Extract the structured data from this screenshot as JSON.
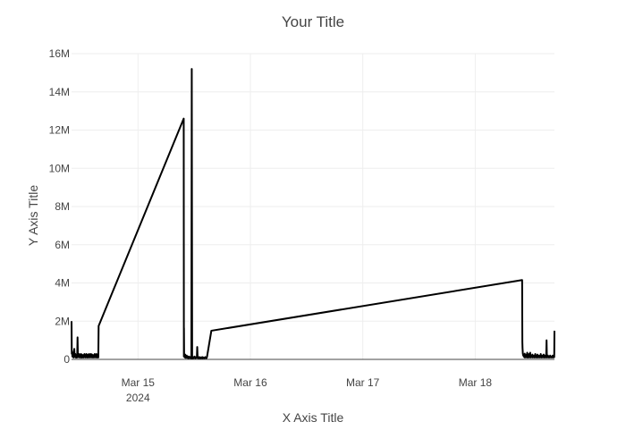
{
  "chart_data": {
    "type": "line",
    "title": "Your Title",
    "xlabel": "X Axis Title",
    "ylabel": "Y Axis Title",
    "x_axis_type": "date",
    "xlim": [
      "2024-03-14 09:49",
      "2024-03-18 16:55"
    ],
    "ylim": [
      0,
      16000000
    ],
    "x_ticks": [
      {
        "value": "2024-03-15 00:00",
        "label": "Mar 15",
        "sublabel": "2024"
      },
      {
        "value": "2024-03-16 00:00",
        "label": "Mar 16",
        "sublabel": ""
      },
      {
        "value": "2024-03-17 00:00",
        "label": "Mar 17",
        "sublabel": ""
      },
      {
        "value": "2024-03-18 00:00",
        "label": "Mar 18",
        "sublabel": ""
      }
    ],
    "y_ticks": [
      {
        "value": 0,
        "label": "0"
      },
      {
        "value": 2000000,
        "label": "2M"
      },
      {
        "value": 4000000,
        "label": "4M"
      },
      {
        "value": 6000000,
        "label": "6M"
      },
      {
        "value": 8000000,
        "label": "8M"
      },
      {
        "value": 10000000,
        "label": "10M"
      },
      {
        "value": 12000000,
        "label": "12M"
      },
      {
        "value": 14000000,
        "label": "14M"
      },
      {
        "value": 16000000,
        "label": "16M"
      }
    ],
    "grid": true,
    "line_color": "#000000",
    "series": [
      {
        "x": [
          "2024-03-14 09:49",
          "2024-03-14 09:52",
          "2024-03-14 09:56",
          "2024-03-14 10:00",
          "2024-03-14 10:05",
          "2024-03-14 10:10",
          "2024-03-14 10:14",
          "2024-03-14 10:19",
          "2024-03-14 10:24",
          "2024-03-14 10:28",
          "2024-03-14 10:33",
          "2024-03-14 10:38",
          "2024-03-14 10:42",
          "2024-03-14 10:47",
          "2024-03-14 10:52",
          "2024-03-14 10:56",
          "2024-03-14 11:01",
          "2024-03-14 11:06",
          "2024-03-14 11:10",
          "2024-03-14 11:15",
          "2024-03-14 11:20",
          "2024-03-14 11:24",
          "2024-03-14 11:29",
          "2024-03-14 11:34",
          "2024-03-14 11:38",
          "2024-03-14 11:43",
          "2024-03-14 11:48",
          "2024-03-14 11:52",
          "2024-03-14 11:57",
          "2024-03-14 12:02",
          "2024-03-14 12:06",
          "2024-03-14 12:11",
          "2024-03-14 12:16",
          "2024-03-14 12:20",
          "2024-03-14 12:25",
          "2024-03-14 12:30",
          "2024-03-14 12:34",
          "2024-03-14 12:39",
          "2024-03-14 12:44",
          "2024-03-14 12:48",
          "2024-03-14 12:53",
          "2024-03-14 12:58",
          "2024-03-14 13:02",
          "2024-03-14 13:07",
          "2024-03-14 13:12",
          "2024-03-14 13:16",
          "2024-03-14 13:21",
          "2024-03-14 13:26",
          "2024-03-14 13:30",
          "2024-03-14 13:35",
          "2024-03-14 13:40",
          "2024-03-14 13:44",
          "2024-03-14 13:49",
          "2024-03-14 13:54",
          "2024-03-14 13:58",
          "2024-03-14 14:03",
          "2024-03-14 14:08",
          "2024-03-14 14:12",
          "2024-03-14 14:17",
          "2024-03-14 14:22",
          "2024-03-14 14:26",
          "2024-03-14 14:31",
          "2024-03-14 14:36",
          "2024-03-14 14:40",
          "2024-03-14 14:45",
          "2024-03-14 14:50",
          "2024-03-14 14:54",
          "2024-03-14 14:59",
          "2024-03-14 15:04",
          "2024-03-14 15:08",
          "2024-03-14 15:13",
          "2024-03-14 15:18",
          "2024-03-14 15:22",
          "2024-03-14 15:27",
          "2024-03-14 15:32",
          "2024-03-14 15:36",
          "2024-03-15 09:46",
          "2024-03-15 09:48",
          "2024-03-15 09:49",
          "2024-03-15 09:51",
          "2024-03-15 09:56",
          "2024-03-15 10:00",
          "2024-03-15 10:05",
          "2024-03-15 10:10",
          "2024-03-15 10:14",
          "2024-03-15 10:19",
          "2024-03-15 10:24",
          "2024-03-15 10:28",
          "2024-03-15 10:33",
          "2024-03-15 10:38",
          "2024-03-15 10:42",
          "2024-03-15 10:47",
          "2024-03-15 10:52",
          "2024-03-15 10:56",
          "2024-03-15 11:01",
          "2024-03-15 11:06",
          "2024-03-15 11:10",
          "2024-03-15 11:15",
          "2024-03-15 11:20",
          "2024-03-15 11:24",
          "2024-03-15 11:29",
          "2024-03-15 11:34",
          "2024-03-15 11:38",
          "2024-03-15 11:43",
          "2024-03-15 11:48",
          "2024-03-15 11:52",
          "2024-03-15 11:57",
          "2024-03-15 12:02",
          "2024-03-15 12:06",
          "2024-03-15 12:11",
          "2024-03-15 12:16",
          "2024-03-15 12:20",
          "2024-03-15 12:25",
          "2024-03-15 12:30",
          "2024-03-15 12:34",
          "2024-03-15 12:39",
          "2024-03-15 12:44",
          "2024-03-15 12:48",
          "2024-03-15 12:53",
          "2024-03-15 12:58",
          "2024-03-15 13:02",
          "2024-03-15 13:07",
          "2024-03-15 13:12",
          "2024-03-15 13:16",
          "2024-03-15 13:21",
          "2024-03-15 13:26",
          "2024-03-15 13:30",
          "2024-03-15 13:35",
          "2024-03-15 13:40",
          "2024-03-15 13:44",
          "2024-03-15 13:49",
          "2024-03-15 13:54",
          "2024-03-15 13:58",
          "2024-03-15 14:03",
          "2024-03-15 14:08",
          "2024-03-15 14:12",
          "2024-03-15 14:17",
          "2024-03-15 14:22",
          "2024-03-15 14:26",
          "2024-03-15 14:31",
          "2024-03-15 14:36",
          "2024-03-15 14:40",
          "2024-03-15 14:45",
          "2024-03-15 15:40",
          "2024-03-18 10:01",
          "2024-03-18 10:04",
          "2024-03-18 10:06",
          "2024-03-18 10:10",
          "2024-03-18 10:15",
          "2024-03-18 10:20",
          "2024-03-18 10:24",
          "2024-03-18 10:29",
          "2024-03-18 10:34",
          "2024-03-18 10:38",
          "2024-03-18 10:43",
          "2024-03-18 10:48",
          "2024-03-18 10:52",
          "2024-03-18 10:57",
          "2024-03-18 11:02",
          "2024-03-18 11:06",
          "2024-03-18 11:11",
          "2024-03-18 11:16",
          "2024-03-18 11:20",
          "2024-03-18 11:25",
          "2024-03-18 11:30",
          "2024-03-18 11:34",
          "2024-03-18 11:39",
          "2024-03-18 11:44",
          "2024-03-18 11:48",
          "2024-03-18 11:53",
          "2024-03-18 11:58",
          "2024-03-18 12:02",
          "2024-03-18 12:07",
          "2024-03-18 12:12",
          "2024-03-18 12:16",
          "2024-03-18 12:21",
          "2024-03-18 12:26",
          "2024-03-18 12:30",
          "2024-03-18 12:35",
          "2024-03-18 12:40",
          "2024-03-18 12:44",
          "2024-03-18 12:49",
          "2024-03-18 12:54",
          "2024-03-18 12:58",
          "2024-03-18 13:03",
          "2024-03-18 13:08",
          "2024-03-18 13:12",
          "2024-03-18 13:17",
          "2024-03-18 13:22",
          "2024-03-18 13:26",
          "2024-03-18 13:31",
          "2024-03-18 13:36",
          "2024-03-18 13:40",
          "2024-03-18 13:45",
          "2024-03-18 13:50",
          "2024-03-18 13:54",
          "2024-03-18 13:59",
          "2024-03-18 14:04",
          "2024-03-18 14:08",
          "2024-03-18 14:13",
          "2024-03-18 14:18",
          "2024-03-18 14:22",
          "2024-03-18 14:27",
          "2024-03-18 14:32",
          "2024-03-18 14:36",
          "2024-03-18 14:41",
          "2024-03-18 14:46",
          "2024-03-18 14:50",
          "2024-03-18 14:55",
          "2024-03-18 15:00",
          "2024-03-18 15:04",
          "2024-03-18 15:09",
          "2024-03-18 15:14",
          "2024-03-18 15:18",
          "2024-03-18 15:23",
          "2024-03-18 15:28",
          "2024-03-18 15:32",
          "2024-03-18 15:37",
          "2024-03-18 15:42",
          "2024-03-18 15:46",
          "2024-03-18 15:51",
          "2024-03-18 15:56",
          "2024-03-18 16:00",
          "2024-03-18 16:05",
          "2024-03-18 16:10",
          "2024-03-18 16:14",
          "2024-03-18 16:19",
          "2024-03-18 16:24",
          "2024-03-18 16:28",
          "2024-03-18 16:33",
          "2024-03-18 16:38",
          "2024-03-18 16:42",
          "2024-03-18 16:47",
          "2024-03-18 16:52",
          "2024-03-18 16:55"
        ],
        "y": [
          2000000,
          300000,
          450000,
          150000,
          280000,
          120000,
          350000,
          100000,
          550000,
          200000,
          150000,
          280000,
          120000,
          90000,
          200000,
          150000,
          100000,
          1150000,
          250000,
          150000,
          120000,
          280000,
          100000,
          200000,
          150000,
          120000,
          280000,
          90000,
          150000,
          250000,
          120000,
          100000,
          180000,
          220000,
          100000,
          150000,
          280000,
          120000,
          200000,
          100000,
          150000,
          280000,
          120000,
          100000,
          180000,
          250000,
          100000,
          150000,
          120000,
          280000,
          100000,
          200000,
          150000,
          120000,
          280000,
          100000,
          150000,
          250000,
          120000,
          100000,
          180000,
          220000,
          100000,
          150000,
          280000,
          120000,
          200000,
          100000,
          150000,
          280000,
          120000,
          100000,
          180000,
          250000,
          100000,
          1750000,
          12600000,
          150000,
          1650000,
          200000,
          150000,
          100000,
          250000,
          120000,
          80000,
          150000,
          200000,
          100000,
          80000,
          150000,
          120000,
          60000,
          100000,
          150000,
          80000,
          120000,
          100000,
          60000,
          80000,
          100000,
          15200000,
          50000,
          100000,
          80000,
          60000,
          120000,
          100000,
          80000,
          150000,
          100000,
          60000,
          80000,
          100000,
          120000,
          80000,
          650000,
          100000,
          80000,
          60000,
          100000,
          80000,
          120000,
          60000,
          80000,
          100000,
          80000,
          60000,
          100000,
          80000,
          120000,
          60000,
          80000,
          100000,
          80000,
          60000,
          80000,
          100000,
          120000,
          80000,
          60000,
          100000,
          80000,
          150000,
          1500000,
          4150000,
          900000,
          600000,
          300000,
          200000,
          250000,
          150000,
          120000,
          300000,
          100000,
          200000,
          150000,
          120000,
          250000,
          100000,
          350000,
          150000,
          100000,
          200000,
          120000,
          280000,
          100000,
          150000,
          350000,
          120000,
          100000,
          200000,
          150000,
          120000,
          250000,
          100000,
          150000,
          120000,
          200000,
          100000,
          150000,
          120000,
          280000,
          100000,
          150000,
          200000,
          120000,
          100000,
          250000,
          150000,
          120000,
          100000,
          200000,
          150000,
          120000,
          100000,
          150000,
          280000,
          120000,
          100000,
          150000,
          200000,
          120000,
          100000,
          150000,
          250000,
          120000,
          100000,
          150000,
          200000,
          100000,
          150000,
          120000,
          1000000,
          100000,
          150000,
          120000,
          200000,
          100000,
          150000,
          120000,
          100000,
          150000,
          200000,
          120000,
          100000,
          150000,
          120000,
          100000,
          150000,
          200000,
          120000,
          100000,
          150000,
          120000,
          1500000
        ]
      }
    ]
  }
}
